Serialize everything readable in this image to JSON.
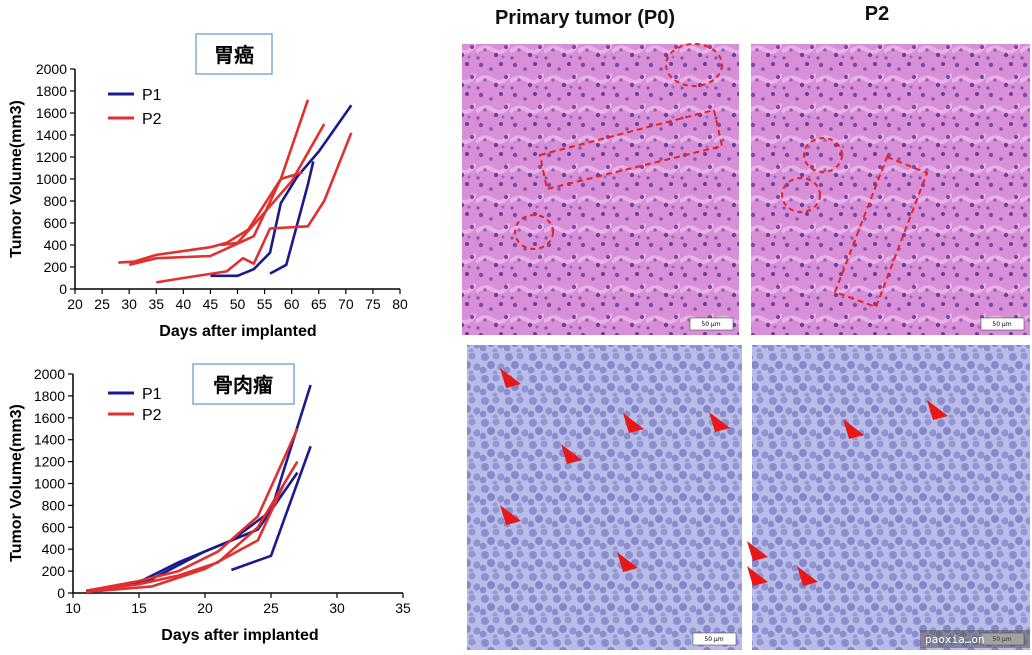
{
  "chart_data": [
    {
      "type": "line",
      "title": "胃癌",
      "xlabel": "Days after implanted",
      "ylabel": "Tumor Volume(mm3)",
      "xlim": [
        20,
        80
      ],
      "ylim": [
        0,
        2000
      ],
      "xticks": [
        "20",
        "25",
        "30",
        "35",
        "40",
        "45",
        "50",
        "55",
        "60",
        "65",
        "70",
        "75",
        "80"
      ],
      "yticks": [
        "0",
        "200",
        "400",
        "600",
        "800",
        "1000",
        "1200",
        "1400",
        "1600",
        "1800",
        "2000"
      ],
      "legend": [
        "P1",
        "P2"
      ],
      "grid": false,
      "legend_position": "top-left",
      "series": [
        {
          "name": "P1",
          "color": "#1a1a8c",
          "lines": [
            [
              [
                45,
                120
              ],
              [
                50,
                120
              ],
              [
                53,
                180
              ],
              [
                56,
                330
              ],
              [
                58,
                780
              ],
              [
                61,
                1020
              ],
              [
                65,
                1250
              ],
              [
                71,
                1670
              ]
            ],
            [
              [
                56,
                140
              ],
              [
                59,
                220
              ],
              [
                63,
                950
              ],
              [
                64,
                1160
              ]
            ]
          ]
        },
        {
          "name": "P2",
          "color": "#e03030",
          "lines": [
            [
              [
                28,
                240
              ],
              [
                31,
                250
              ],
              [
                35,
                310
              ],
              [
                45,
                380
              ],
              [
                48,
                420
              ],
              [
                52,
                540
              ],
              [
                58,
                1000
              ],
              [
                62,
                1060
              ]
            ],
            [
              [
                30,
                220
              ],
              [
                35,
                280
              ],
              [
                45,
                300
              ],
              [
                53,
                480
              ],
              [
                58,
                1000
              ],
              [
                63,
                1720
              ]
            ],
            [
              [
                35,
                60
              ],
              [
                40,
                100
              ],
              [
                48,
                160
              ],
              [
                51,
                280
              ],
              [
                53,
                230
              ],
              [
                56,
                550
              ],
              [
                63,
                570
              ],
              [
                66,
                800
              ],
              [
                71,
                1420
              ]
            ],
            [
              [
                47,
                400
              ],
              [
                50,
                420
              ],
              [
                54,
                640
              ],
              [
                60,
                980
              ],
              [
                66,
                1500
              ]
            ]
          ]
        }
      ]
    },
    {
      "type": "line",
      "title": "骨肉瘤",
      "xlabel": "Days after implanted",
      "ylabel": "Tumor Volume(mm3)",
      "xlim": [
        10,
        35
      ],
      "ylim": [
        0,
        2000
      ],
      "xticks": [
        "10",
        "15",
        "20",
        "25",
        "30",
        "35"
      ],
      "yticks": [
        "0",
        "200",
        "400",
        "600",
        "800",
        "1000",
        "1200",
        "1400",
        "1600",
        "1800",
        "2000"
      ],
      "legend": [
        "P1",
        "P2"
      ],
      "grid": false,
      "legend_position": "top-left",
      "series": [
        {
          "name": "P1",
          "color": "#1a1a8c",
          "lines": [
            [
              [
                11,
                20
              ],
              [
                15,
                100
              ],
              [
                18,
                280
              ],
              [
                22,
                480
              ],
              [
                25,
                750
              ],
              [
                28,
                1900
              ]
            ],
            [
              [
                22,
                210
              ],
              [
                25,
                340
              ],
              [
                28,
                1340
              ]
            ],
            [
              [
                11,
                10
              ],
              [
                16,
                130
              ],
              [
                20,
                380
              ],
              [
                24,
                580
              ],
              [
                27,
                1100
              ]
            ]
          ]
        },
        {
          "name": "P2",
          "color": "#e03030",
          "lines": [
            [
              [
                11,
                20
              ],
              [
                15,
                110
              ],
              [
                18,
                200
              ],
              [
                21,
                380
              ],
              [
                24,
                700
              ],
              [
                27,
                1500
              ]
            ],
            [
              [
                12,
                30
              ],
              [
                15,
                80
              ],
              [
                18,
                160
              ],
              [
                21,
                280
              ],
              [
                24,
                600
              ],
              [
                27,
                1200
              ]
            ],
            [
              [
                11,
                10
              ],
              [
                16,
                60
              ],
              [
                20,
                220
              ],
              [
                24,
                480
              ],
              [
                26,
                1000
              ]
            ]
          ]
        }
      ]
    }
  ],
  "panels": {
    "col_titles": [
      "Primary tumor (P0)",
      "P2"
    ],
    "scale_label": "50 µm",
    "watermark": "paoxia…on"
  }
}
